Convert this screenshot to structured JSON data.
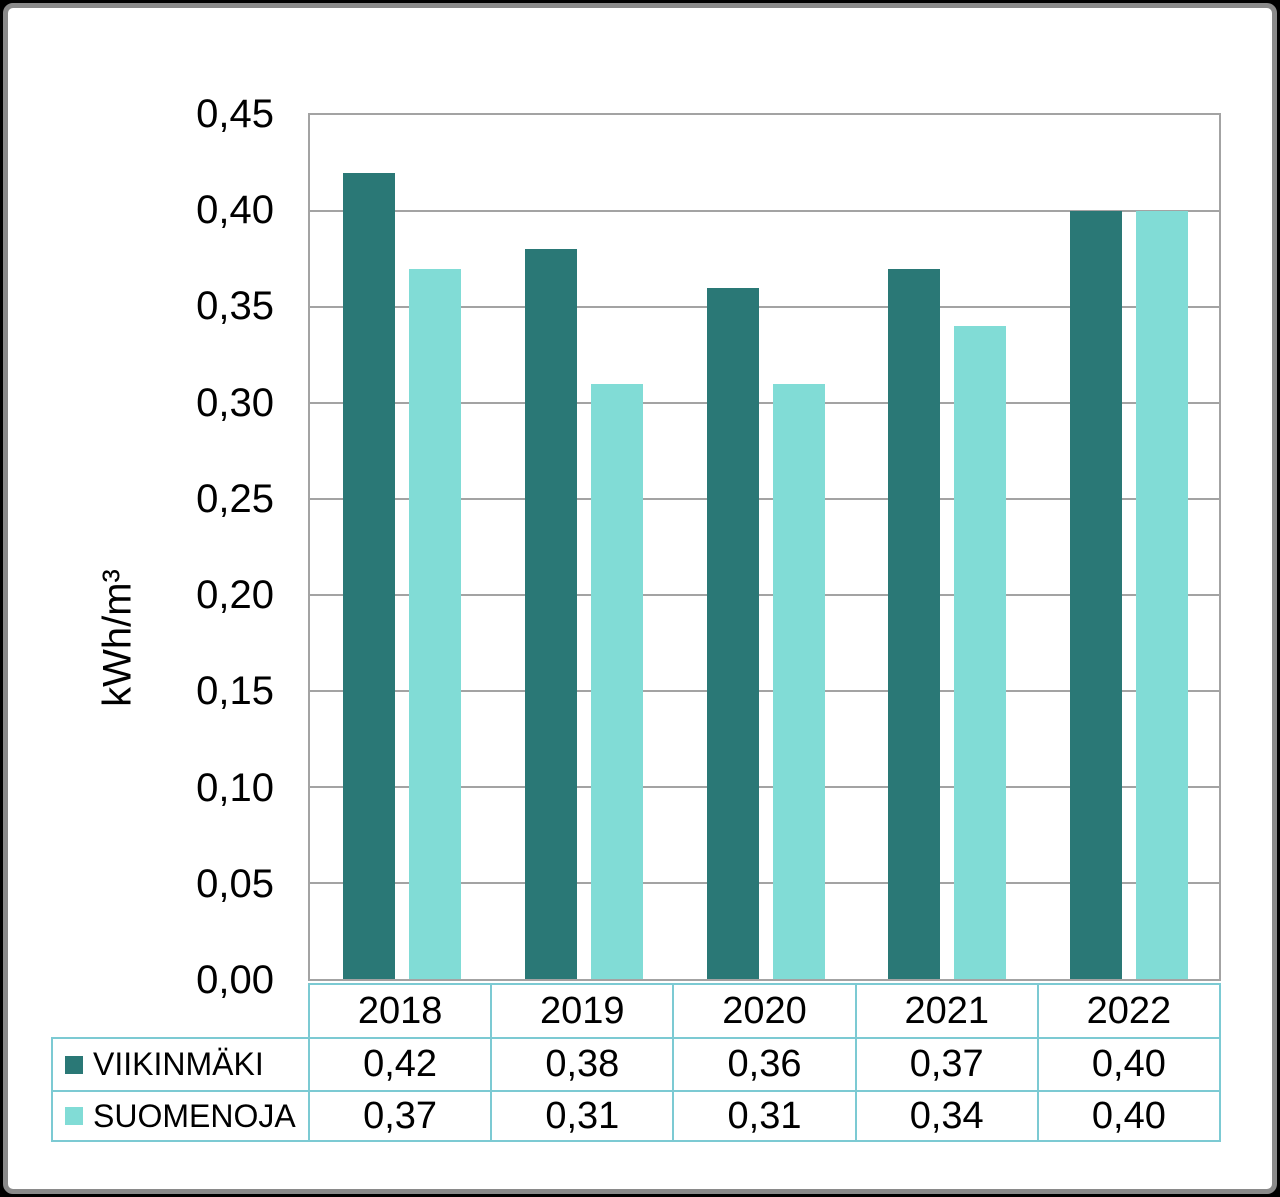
{
  "chart_data": {
    "type": "bar",
    "title": "",
    "ylabel": "kWh/m³",
    "xlabel": "",
    "categories": [
      "2018",
      "2019",
      "2020",
      "2021",
      "2022"
    ],
    "series": [
      {
        "name": "VIIKINMÄKI",
        "color": "#2a7876",
        "values": [
          0.42,
          0.38,
          0.36,
          0.37,
          0.4
        ],
        "display_values": [
          "0,42",
          "0,38",
          "0,36",
          "0,37",
          "0,40"
        ]
      },
      {
        "name": "SUOMENOJA",
        "color": "#81dcd6",
        "values": [
          0.37,
          0.31,
          0.31,
          0.34,
          0.4
        ],
        "display_values": [
          "0,37",
          "0,31",
          "0,31",
          "0,34",
          "0,40"
        ]
      }
    ],
    "ylim": [
      0,
      0.45
    ],
    "ytick_step": 0.05,
    "ytick_labels": [
      "0,45",
      "0,40",
      "0,35",
      "0,30",
      "0,25",
      "0,20",
      "0,15",
      "0,10",
      "0,05",
      "0,00"
    ],
    "grid": "horizontal-major",
    "legend_position": "table-row-headers",
    "decimal_separator": ","
  },
  "colors": {
    "bar_dark": "#2a7876",
    "bar_light": "#81dcd6",
    "gridline": "#a3a3a3",
    "plot_border": "#a3a3a3",
    "table_border": "#7ccad3",
    "frame_border": "#8a8a8a",
    "outer_background": "#000000",
    "panel_background": "#ffffff",
    "text": "#000000"
  }
}
